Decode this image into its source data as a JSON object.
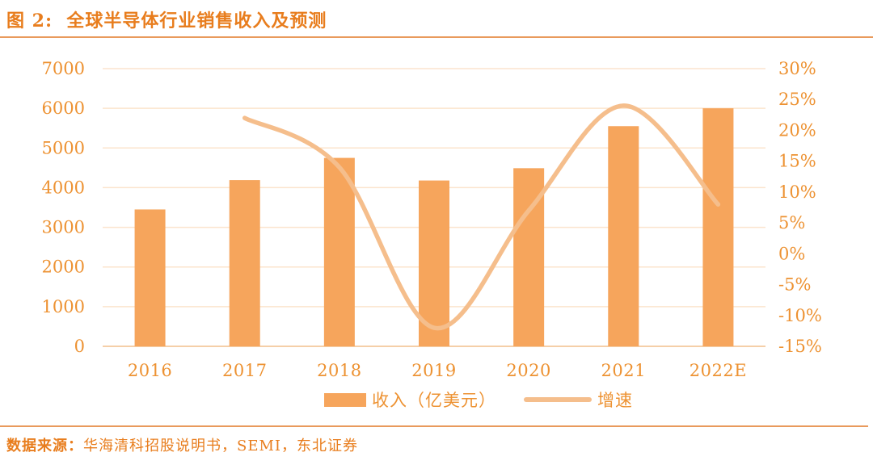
{
  "title": {
    "text": "图 2:  全球半导体行业销售收入及预测"
  },
  "source": {
    "label": "数据来源：",
    "text": "华海清科招股说明书，SEMI，东北证券"
  },
  "colors": {
    "accent": "#e87d1d",
    "tick_text": "#ed9232",
    "bar": "#f6a55c",
    "line": "#f5be8c",
    "grid": "#fbe4cd",
    "baseline": "#f5cfa8",
    "rule": "#e99a5c",
    "background": "#ffffff"
  },
  "chart_data": {
    "type": "bar",
    "subtype": "bar+smooth-line, dual axis",
    "title": "全球半导体行业销售收入及预测",
    "categories": [
      "2016",
      "2017",
      "2018",
      "2019",
      "2020",
      "2021",
      "2022E"
    ],
    "series": [
      {
        "name": "收入（亿美元）",
        "type": "bar",
        "axis": "left",
        "values": [
          3450,
          4190,
          4750,
          4180,
          4490,
          5550,
          6000
        ]
      },
      {
        "name": "增速",
        "type": "line",
        "axis": "right",
        "values_percent": [
          null,
          22,
          14,
          -12,
          7,
          24,
          8
        ]
      }
    ],
    "left_axis": {
      "min": 0,
      "max": 7000,
      "step": 1000,
      "ticks": [
        "0",
        "1000",
        "2000",
        "3000",
        "4000",
        "5000",
        "6000",
        "7000"
      ]
    },
    "right_axis": {
      "min": -15,
      "max": 30,
      "step": 5,
      "ticks": [
        "-15%",
        "-10%",
        "-5%",
        "0%",
        "5%",
        "10%",
        "15%",
        "20%",
        "25%",
        "30%"
      ]
    },
    "grid": true,
    "legend_position": "bottom",
    "legend": [
      {
        "label": "收入（亿美元）",
        "swatch": "bar"
      },
      {
        "label": "增速",
        "swatch": "line"
      }
    ]
  }
}
